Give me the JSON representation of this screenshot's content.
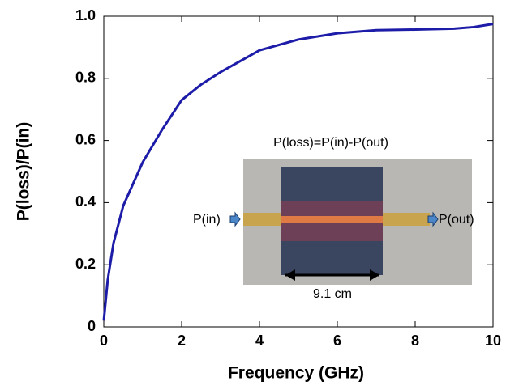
{
  "chart_data": {
    "type": "line",
    "xlabel": "Frequency (GHz)",
    "ylabel": "P(loss)/P(in)",
    "x": [
      0,
      0.1,
      0.25,
      0.5,
      0.75,
      1,
      1.5,
      2,
      2.5,
      3,
      3.5,
      4,
      5,
      6,
      7,
      8,
      9,
      9.5,
      10
    ],
    "series": [
      {
        "name": "P(loss)/P(in)",
        "color": "#1c1ca8",
        "values": [
          0.02,
          0.15,
          0.27,
          0.39,
          0.46,
          0.53,
          0.635,
          0.73,
          0.78,
          0.82,
          0.855,
          0.89,
          0.925,
          0.945,
          0.955,
          0.957,
          0.96,
          0.965,
          0.975
        ]
      }
    ],
    "xlim": [
      0,
      10
    ],
    "xticks": [
      0,
      2,
      4,
      6,
      8,
      10
    ],
    "ylim": [
      0,
      1
    ],
    "yticks": [
      0,
      0.2,
      0.4,
      0.6,
      0.8,
      {
        "value": 1,
        "label": "1.0"
      }
    ],
    "annotations": {
      "formula": "P(loss)=P(in)-P(out)",
      "input": "P(in)",
      "output": "P(out)",
      "length": "9.1 cm"
    }
  }
}
